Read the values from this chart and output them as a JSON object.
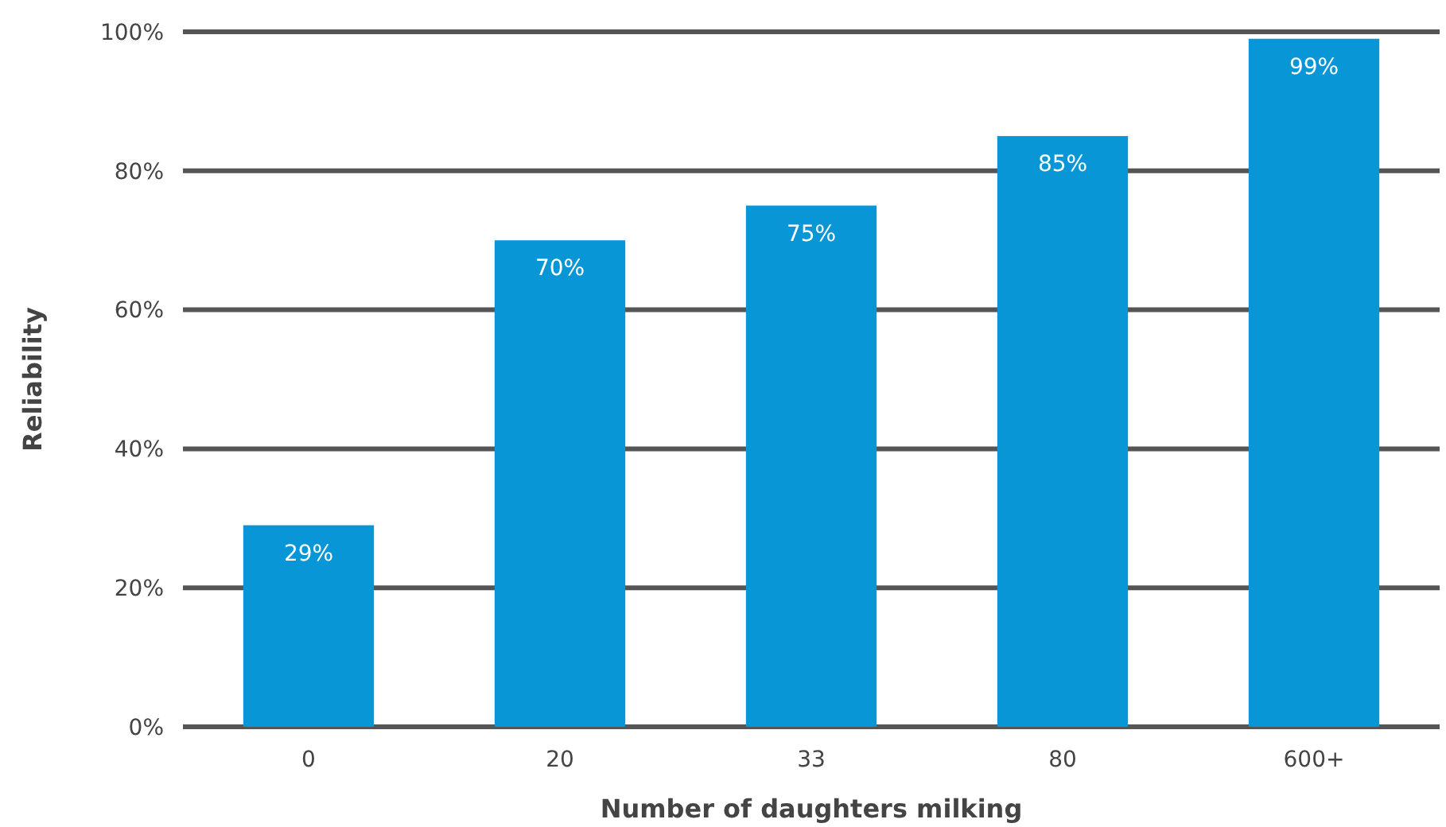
{
  "chart_data": {
    "type": "bar",
    "xlabel": "Number of daughters milking",
    "ylabel": "Reliability",
    "categories": [
      "0",
      "20",
      "33",
      "80",
      "600+"
    ],
    "values": [
      29,
      70,
      75,
      85,
      99
    ],
    "value_labels": [
      "29%",
      "70%",
      "75%",
      "85%",
      "99%"
    ],
    "color": "#0996d7",
    "ylim": [
      0,
      100
    ],
    "yticks": [
      {
        "value": 0,
        "label": "0%"
      },
      {
        "value": 20,
        "label": "20%"
      },
      {
        "value": 40,
        "label": "40%"
      },
      {
        "value": 60,
        "label": "60%"
      },
      {
        "value": 80,
        "label": "80%"
      },
      {
        "value": 100,
        "label": "100%"
      }
    ],
    "grid": "y"
  }
}
